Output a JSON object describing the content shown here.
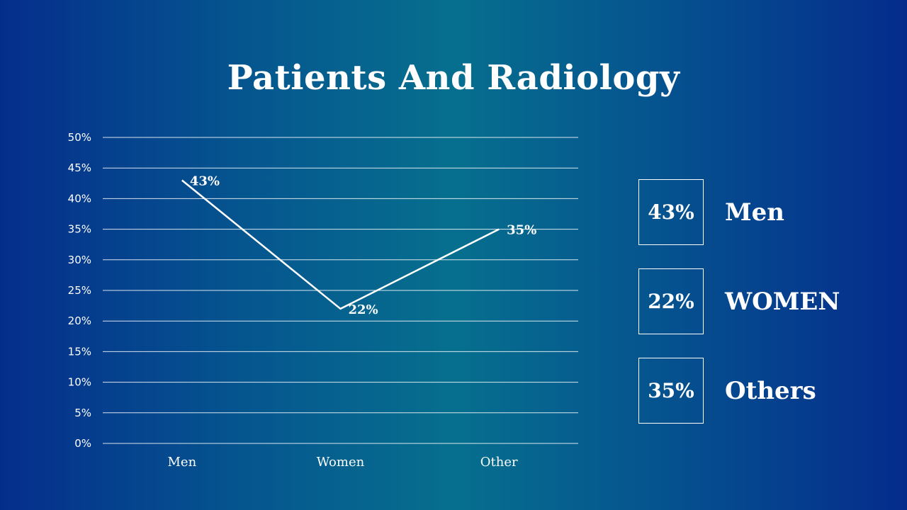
{
  "slide": {
    "title": "Patients And Radiology"
  },
  "chart_data": {
    "type": "line",
    "categories": [
      "Men",
      "Women",
      "Other"
    ],
    "values": [
      43,
      22,
      35
    ],
    "value_labels": [
      "43%",
      "22%",
      "35%"
    ],
    "y_ticks": [
      "0%",
      "5%",
      "10%",
      "15%",
      "20%",
      "25%",
      "30%",
      "35%",
      "40%",
      "45%",
      "50%"
    ],
    "ylim": [
      0,
      50
    ],
    "grid": true,
    "line_color": "#ffffff"
  },
  "legend": {
    "items": [
      {
        "value": "43%",
        "label": "Men"
      },
      {
        "value": "22%",
        "label": "WOMEN"
      },
      {
        "value": "35%",
        "label": "Others"
      }
    ]
  }
}
